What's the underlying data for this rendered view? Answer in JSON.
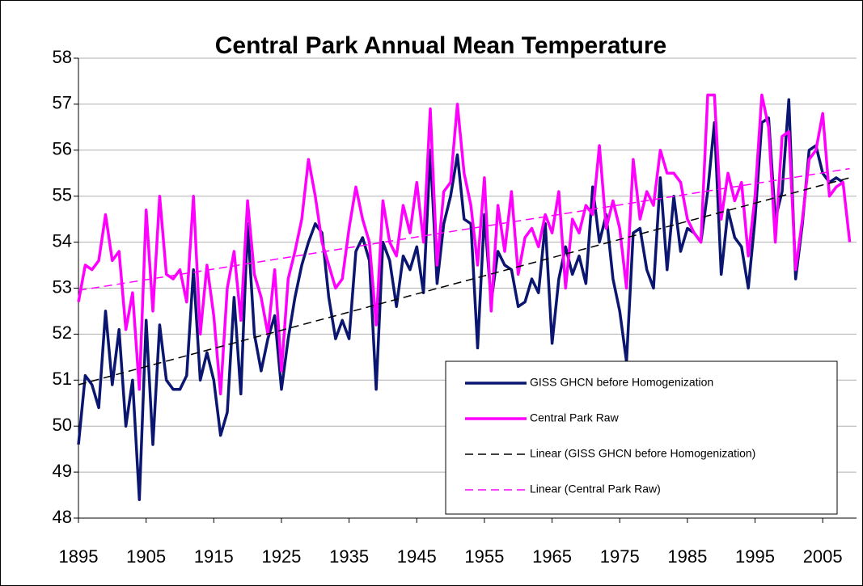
{
  "chart_data": {
    "type": "line",
    "title": "Central Park Annual Mean Temperature",
    "x": [
      1895,
      1896,
      1897,
      1898,
      1899,
      1900,
      1901,
      1902,
      1903,
      1904,
      1905,
      1906,
      1907,
      1908,
      1909,
      1910,
      1911,
      1912,
      1913,
      1914,
      1915,
      1916,
      1917,
      1918,
      1919,
      1920,
      1921,
      1922,
      1923,
      1924,
      1925,
      1926,
      1927,
      1928,
      1929,
      1930,
      1931,
      1932,
      1933,
      1934,
      1935,
      1936,
      1937,
      1938,
      1939,
      1940,
      1941,
      1942,
      1943,
      1944,
      1945,
      1946,
      1947,
      1948,
      1949,
      1950,
      1951,
      1952,
      1953,
      1954,
      1955,
      1956,
      1957,
      1958,
      1959,
      1960,
      1961,
      1962,
      1963,
      1964,
      1965,
      1966,
      1967,
      1968,
      1969,
      1970,
      1971,
      1972,
      1973,
      1974,
      1975,
      1976,
      1977,
      1978,
      1979,
      1980,
      1981,
      1982,
      1983,
      1984,
      1985,
      1986,
      1987,
      1988,
      1989,
      1990,
      1991,
      1992,
      1993,
      1994,
      1995,
      1996,
      1997,
      1998,
      1999,
      2000,
      2001,
      2002,
      2003,
      2004,
      2005,
      2006,
      2007,
      2008,
      2009
    ],
    "series": [
      {
        "name": "GISS GHCN before Homogenization",
        "color": "#0a1670",
        "dashed": false,
        "values": [
          49.6,
          51.1,
          50.9,
          50.4,
          52.5,
          50.9,
          52.1,
          50.0,
          51.0,
          48.4,
          52.3,
          49.6,
          52.2,
          51.0,
          50.8,
          50.8,
          51.1,
          53.4,
          51.0,
          51.6,
          51.0,
          49.8,
          50.3,
          52.8,
          50.7,
          54.4,
          52.0,
          51.2,
          51.9,
          52.4,
          50.8,
          51.9,
          52.8,
          53.5,
          54.0,
          54.4,
          54.2,
          52.8,
          51.9,
          52.3,
          51.9,
          53.8,
          54.1,
          53.6,
          50.8,
          54.0,
          53.6,
          52.6,
          53.7,
          53.4,
          53.9,
          52.9,
          56.0,
          53.1,
          54.4,
          55.0,
          55.9,
          54.5,
          54.4,
          51.7,
          54.6,
          52.7,
          53.8,
          53.5,
          53.4,
          52.6,
          52.7,
          53.2,
          52.9,
          54.4,
          51.8,
          53.2,
          53.9,
          53.3,
          53.7,
          53.1,
          55.2,
          54.0,
          54.6,
          53.2,
          52.5,
          51.4,
          54.2,
          54.3,
          53.4,
          53.0,
          55.4,
          53.4,
          55.0,
          53.8,
          54.3,
          54.2,
          54.0,
          55.1,
          56.6,
          53.3,
          54.7,
          54.1,
          53.9,
          53.0,
          54.5,
          56.6,
          56.7,
          54.5,
          55.1,
          57.1,
          53.2,
          54.4,
          56.0,
          56.1,
          55.5,
          55.3,
          55.4,
          55.3,
          null
        ]
      },
      {
        "name": "Central Park Raw",
        "color": "#ff00ff",
        "dashed": false,
        "values": [
          52.7,
          53.5,
          53.4,
          53.6,
          54.6,
          53.6,
          53.8,
          52.1,
          52.9,
          50.8,
          54.7,
          52.5,
          55.0,
          53.3,
          53.2,
          53.4,
          52.7,
          55.0,
          52.0,
          53.5,
          52.4,
          50.7,
          53.0,
          53.8,
          52.3,
          54.9,
          53.3,
          52.8,
          52.0,
          53.4,
          51.2,
          53.2,
          53.8,
          54.5,
          55.8,
          55.0,
          54.0,
          53.5,
          53.0,
          53.2,
          54.3,
          55.2,
          54.5,
          54.0,
          52.2,
          54.9,
          54.0,
          53.7,
          54.8,
          54.2,
          55.3,
          54.0,
          56.9,
          53.5,
          55.1,
          55.3,
          57.0,
          55.5,
          54.8,
          53.5,
          55.4,
          52.5,
          54.8,
          53.8,
          55.1,
          53.3,
          54.1,
          54.3,
          53.9,
          54.6,
          54.2,
          55.1,
          53.0,
          54.5,
          54.2,
          54.8,
          54.6,
          56.1,
          54.3,
          54.9,
          54.3,
          53.0,
          55.8,
          54.5,
          55.1,
          54.8,
          56.0,
          55.5,
          55.5,
          55.3,
          54.5,
          54.2,
          54.0,
          57.2,
          57.2,
          54.5,
          55.5,
          54.9,
          55.3,
          53.7,
          55.0,
          57.2,
          56.5,
          54.0,
          56.3,
          56.4,
          53.4,
          54.5,
          55.8,
          56.0,
          56.8,
          55.0,
          55.2,
          55.3,
          54.0
        ]
      },
      {
        "name": "Linear (GISS GHCN before Homogenization)",
        "color": "#000000",
        "dashed": true,
        "x": [
          1895,
          2009
        ],
        "values": [
          50.9,
          55.4
        ]
      },
      {
        "name": "Linear (Central Park Raw)",
        "color": "#ff00ff",
        "dashed": true,
        "x": [
          1895,
          2009
        ],
        "values": [
          52.95,
          55.6
        ]
      }
    ],
    "xlim": [
      1895,
      2010
    ],
    "xticks": [
      1895,
      1905,
      1915,
      1925,
      1935,
      1945,
      1955,
      1965,
      1975,
      1985,
      1995,
      2005
    ],
    "ylim": [
      48,
      58
    ],
    "yticks": [
      48,
      49,
      50,
      51,
      52,
      53,
      54,
      55,
      56,
      57,
      58
    ],
    "grid": true,
    "legend": "lower right"
  }
}
